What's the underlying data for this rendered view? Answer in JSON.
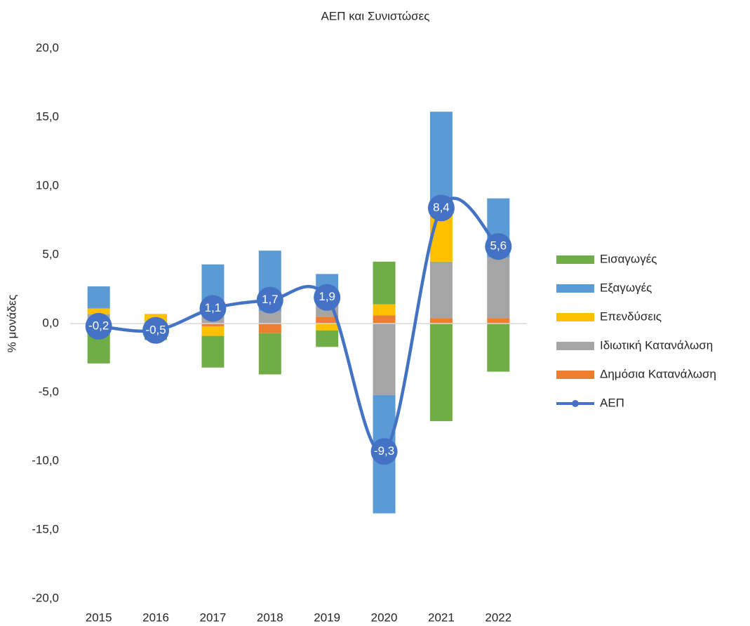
{
  "chart_data": {
    "type": "bar",
    "stacked": true,
    "title": "ΑΕΠ και Συνιστώσες",
    "y_label": "% μονάδες",
    "categories": [
      "2015",
      "2016",
      "2017",
      "2018",
      "2019",
      "2020",
      "2021",
      "2022"
    ],
    "series": [
      {
        "name": "Δημόσια Κατανάλωση",
        "color": "#ed7d31",
        "values": [
          0.0,
          -0.4,
          -0.2,
          -0.7,
          0.5,
          0.6,
          0.4,
          0.4
        ]
      },
      {
        "name": "Ιδιωτική Κατανάλωση",
        "color": "#a5a5a5",
        "values": [
          0.7,
          0.1,
          1.1,
          0.9,
          0.9,
          -5.2,
          4.1,
          4.4
        ]
      },
      {
        "name": "Επενδύσεις",
        "color": "#ffc000",
        "values": [
          0.4,
          0.6,
          -0.7,
          0.0,
          -0.5,
          0.8,
          3.4,
          0.0
        ]
      },
      {
        "name": "Εξαγωγές",
        "color": "#5b9bd5",
        "values": [
          1.6,
          0.0,
          3.2,
          4.4,
          2.2,
          -8.6,
          7.5,
          4.3
        ]
      },
      {
        "name": "Εισαγωγές",
        "color": "#70ad47",
        "values": [
          -2.9,
          -0.8,
          -2.3,
          -3.0,
          -1.2,
          3.1,
          -7.1,
          -3.5
        ]
      },
      {
        "name": "ΑΕΠ",
        "type": "line",
        "color": "#4472c4",
        "values": [
          -0.2,
          -0.5,
          1.1,
          1.7,
          1.9,
          -9.3,
          8.4,
          5.6
        ],
        "value_labels": [
          "-0,2",
          "-0,5",
          "1,1",
          "1,7",
          "1,9",
          "-9,3",
          "8,4",
          "5,6"
        ]
      }
    ],
    "ylim": [
      -20,
      20
    ],
    "yticks": [
      {
        "value": -20,
        "label": "-20,0"
      },
      {
        "value": -15,
        "label": "-15,0"
      },
      {
        "value": -10,
        "label": "-10,0"
      },
      {
        "value": -5,
        "label": "-5,0"
      },
      {
        "value": 0,
        "label": "0,0"
      },
      {
        "value": 5,
        "label": "5,0"
      },
      {
        "value": 10,
        "label": "10,0"
      },
      {
        "value": 15,
        "label": "15,0"
      },
      {
        "value": 20,
        "label": "20,0"
      }
    ],
    "legend": "right",
    "grid": false
  }
}
